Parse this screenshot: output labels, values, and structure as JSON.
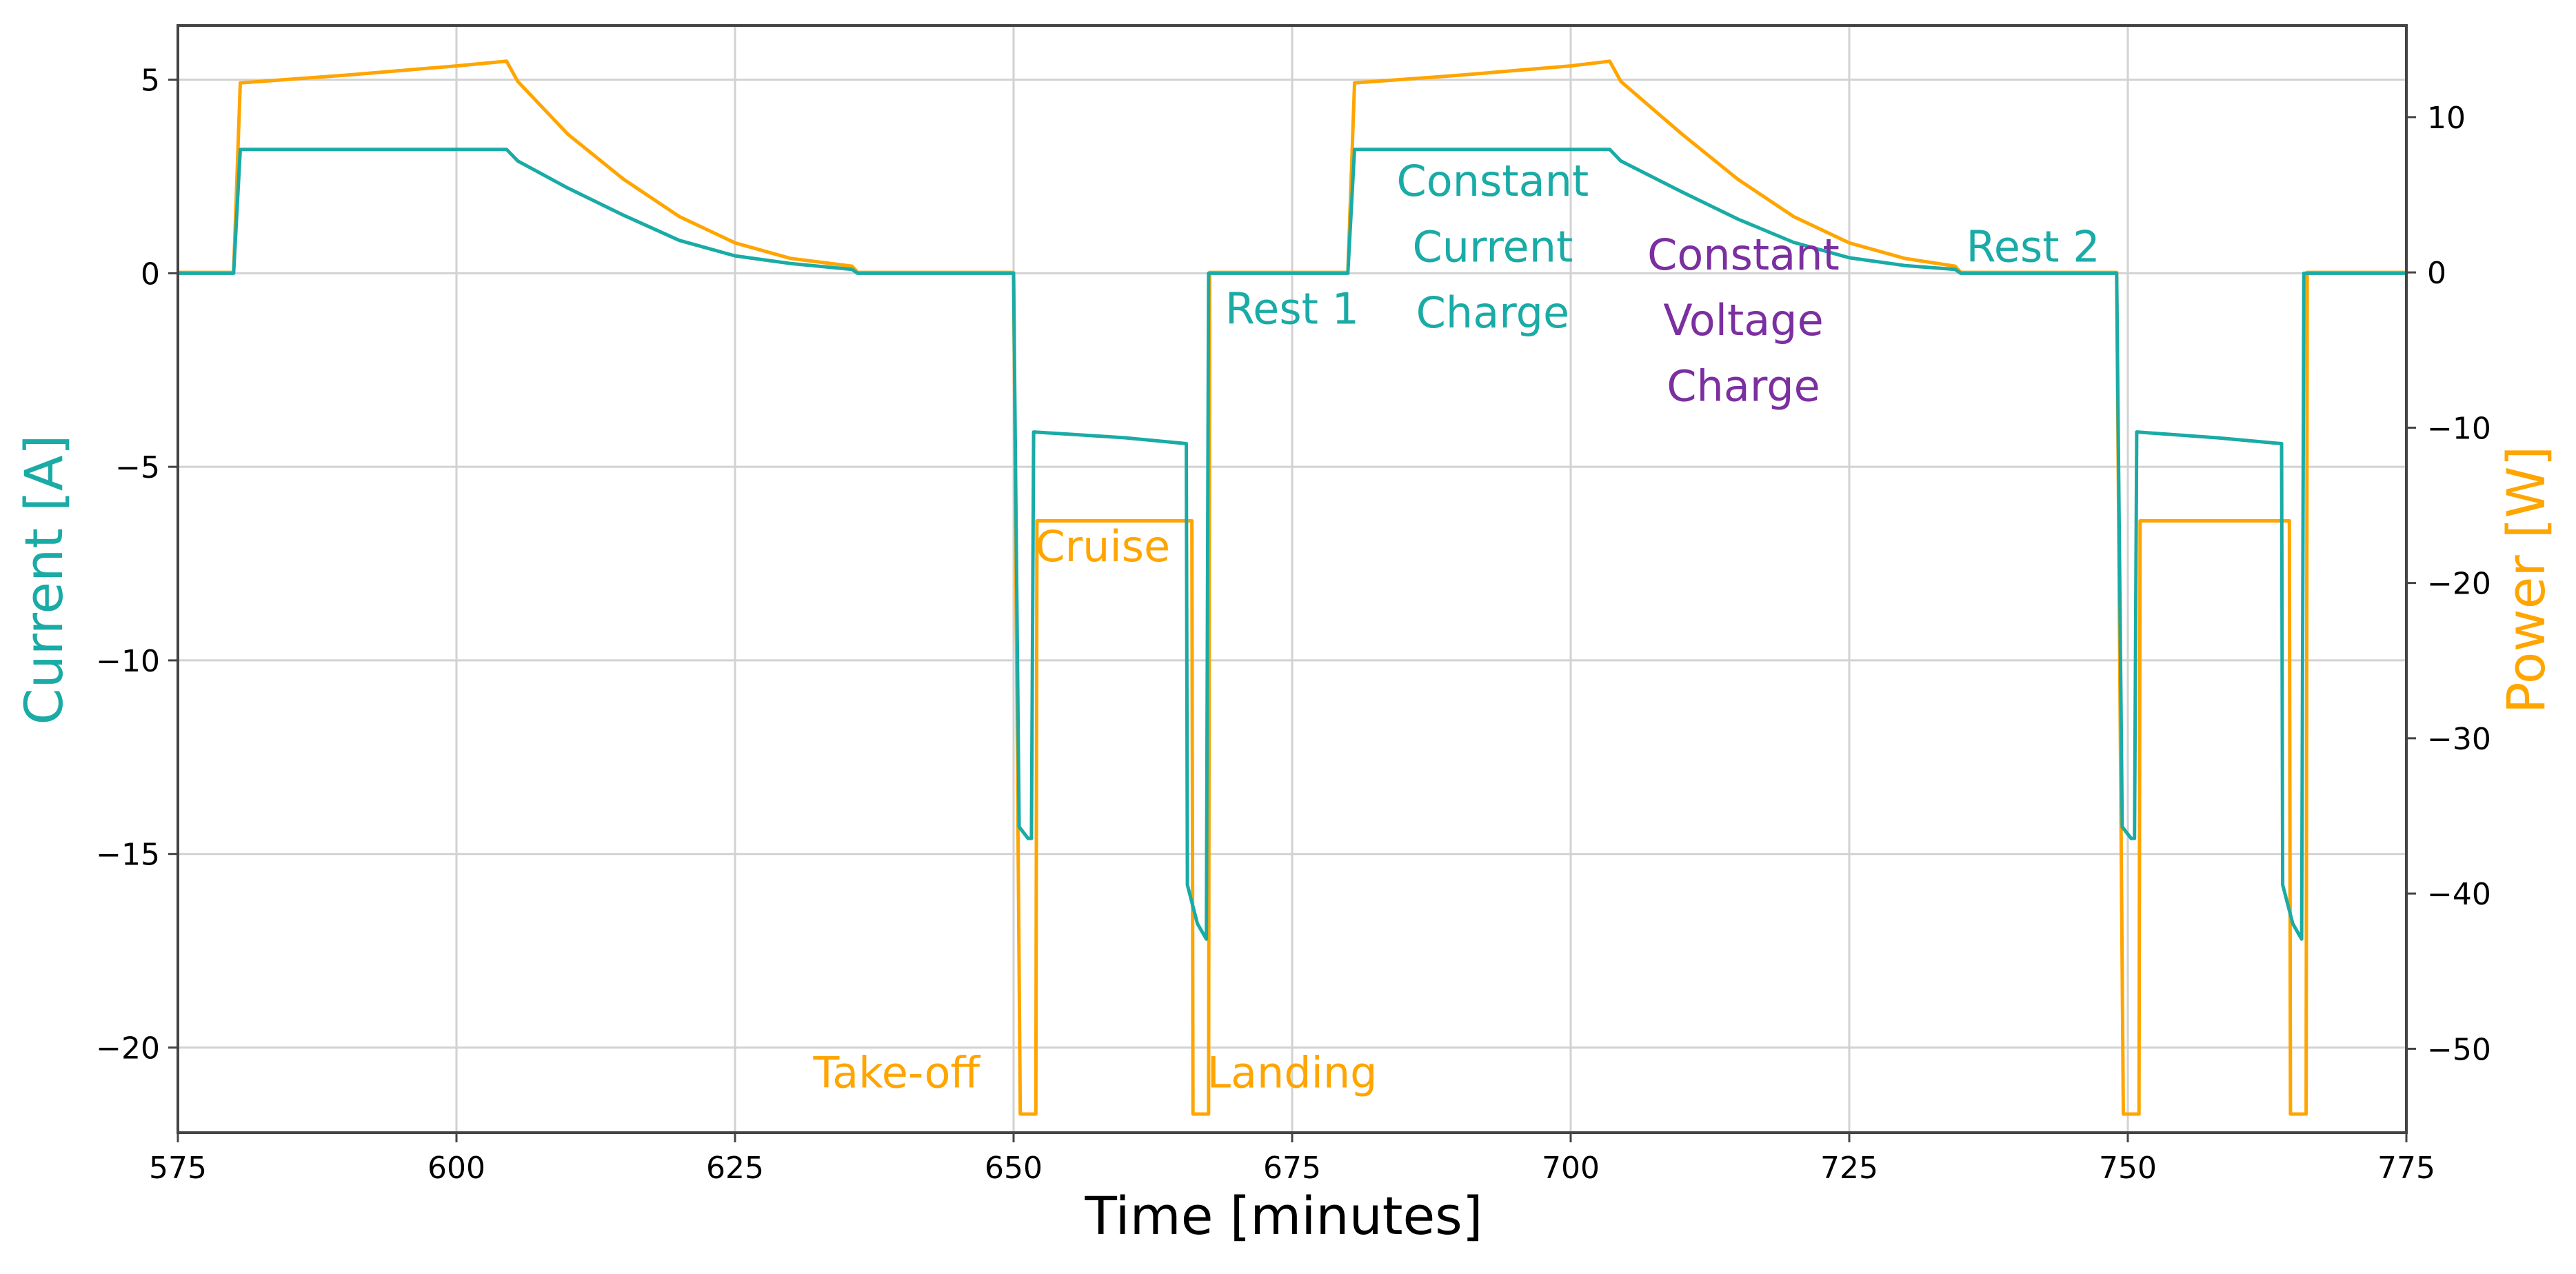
{
  "chart_data": {
    "type": "line",
    "xlabel": "Time [minutes]",
    "ylabel": "Current [A]",
    "y2label": "Power [W]",
    "xlim": [
      575,
      775
    ],
    "ylim": [
      -22.2,
      6.4
    ],
    "y2lim": [
      -55.4,
      15.9
    ],
    "xticks": [
      575,
      600,
      625,
      650,
      675,
      700,
      725,
      750,
      775
    ],
    "yticks": [
      5,
      0,
      -5,
      -10,
      -15,
      -20
    ],
    "y2ticks": [
      10,
      0,
      -10,
      -20,
      -30,
      -40,
      -50
    ],
    "grid": true,
    "colors": {
      "current": "#1aaba6",
      "power": "#ffa500",
      "cv_annotation": "#7b2fa0"
    },
    "series": [
      {
        "name": "Current [A]",
        "axis": "left",
        "color": "#1aaba6",
        "points": [
          [
            575,
            0
          ],
          [
            580,
            0
          ],
          [
            580.6,
            3.2
          ],
          [
            600,
            3.2
          ],
          [
            604.5,
            3.2
          ],
          [
            605.5,
            2.9
          ],
          [
            610,
            2.2
          ],
          [
            615,
            1.5
          ],
          [
            620,
            0.85
          ],
          [
            625,
            0.45
          ],
          [
            630,
            0.25
          ],
          [
            635.5,
            0.1
          ],
          [
            636,
            0
          ],
          [
            650,
            0
          ],
          [
            650.5,
            -14.3
          ],
          [
            651.3,
            -14.6
          ],
          [
            651.6,
            -14.6
          ],
          [
            651.8,
            -4.1
          ],
          [
            660,
            -4.25
          ],
          [
            665.5,
            -4.4
          ],
          [
            665.6,
            -15.8
          ],
          [
            666.5,
            -16.8
          ],
          [
            667.3,
            -17.2
          ],
          [
            667.5,
            0
          ],
          [
            680,
            0
          ],
          [
            680.6,
            3.2
          ],
          [
            700,
            3.2
          ],
          [
            703.5,
            3.2
          ],
          [
            704.5,
            2.9
          ],
          [
            710,
            2.1
          ],
          [
            715,
            1.4
          ],
          [
            720,
            0.8
          ],
          [
            725,
            0.4
          ],
          [
            730,
            0.2
          ],
          [
            734.5,
            0.1
          ],
          [
            735,
            0
          ],
          [
            749,
            0
          ],
          [
            749.5,
            -14.3
          ],
          [
            750.3,
            -14.6
          ],
          [
            750.6,
            -14.6
          ],
          [
            750.8,
            -4.1
          ],
          [
            758,
            -4.25
          ],
          [
            763.8,
            -4.4
          ],
          [
            763.9,
            -15.8
          ],
          [
            764.8,
            -16.8
          ],
          [
            765.6,
            -17.2
          ],
          [
            765.8,
            0
          ],
          [
            775,
            0
          ]
        ]
      },
      {
        "name": "Power [W]",
        "axis": "right",
        "color": "#ffa500",
        "points": [
          [
            575,
            0
          ],
          [
            580,
            0
          ],
          [
            580.6,
            12.2
          ],
          [
            590,
            12.7
          ],
          [
            600,
            13.3
          ],
          [
            604.5,
            13.6
          ],
          [
            605.5,
            12.3
          ],
          [
            610,
            8.9
          ],
          [
            615,
            6.0
          ],
          [
            620,
            3.6
          ],
          [
            625,
            1.9
          ],
          [
            630,
            0.9
          ],
          [
            635.5,
            0.4
          ],
          [
            636,
            0
          ],
          [
            650,
            0
          ],
          [
            650.6,
            -54.2
          ],
          [
            652,
            -54.2
          ],
          [
            652.1,
            -16
          ],
          [
            666,
            -16
          ],
          [
            666.1,
            -54.2
          ],
          [
            667.5,
            -54.2
          ],
          [
            667.6,
            0
          ],
          [
            680,
            0
          ],
          [
            680.6,
            12.2
          ],
          [
            690,
            12.7
          ],
          [
            700,
            13.3
          ],
          [
            703.5,
            13.6
          ],
          [
            704.5,
            12.3
          ],
          [
            710,
            8.9
          ],
          [
            715,
            6.0
          ],
          [
            720,
            3.6
          ],
          [
            725,
            1.9
          ],
          [
            730,
            0.9
          ],
          [
            734.5,
            0.4
          ],
          [
            735,
            0
          ],
          [
            749,
            0
          ],
          [
            749.6,
            -54.2
          ],
          [
            751,
            -54.2
          ],
          [
            751.1,
            -16
          ],
          [
            764.5,
            -16
          ],
          [
            764.6,
            -54.2
          ],
          [
            766,
            -54.2
          ],
          [
            766.1,
            0
          ],
          [
            775,
            0
          ]
        ]
      }
    ],
    "annotations": [
      {
        "text": "Take-off",
        "x": 639.5,
        "y": -52.5,
        "axis": "right",
        "color": "#ffa500",
        "anchor": "middle"
      },
      {
        "text": "Landing",
        "x": 675,
        "y": -52.5,
        "axis": "right",
        "color": "#ffa500",
        "anchor": "middle"
      },
      {
        "text": "Cruise",
        "x": 658,
        "y": -18.6,
        "axis": "right",
        "color": "#ffa500",
        "anchor": "middle"
      },
      {
        "text": "Rest 1",
        "x": 675,
        "y": -1.3,
        "axis": "left",
        "color": "#1aaba6",
        "anchor": "middle"
      },
      {
        "text": "Constant",
        "x": 693,
        "y": 2.0,
        "axis": "left",
        "color": "#1aaba6",
        "anchor": "middle"
      },
      {
        "text": "Current",
        "x": 693,
        "y": 0.3,
        "axis": "left",
        "color": "#1aaba6",
        "anchor": "middle"
      },
      {
        "text": "Charge",
        "x": 693,
        "y": -1.4,
        "axis": "left",
        "color": "#1aaba6",
        "anchor": "middle"
      },
      {
        "text": "Constant",
        "x": 715.5,
        "y": 0.1,
        "axis": "left",
        "color": "#7b2fa0",
        "anchor": "middle"
      },
      {
        "text": "Voltage",
        "x": 715.5,
        "y": -1.6,
        "axis": "left",
        "color": "#7b2fa0",
        "anchor": "middle"
      },
      {
        "text": "Charge",
        "x": 715.5,
        "y": -3.3,
        "axis": "left",
        "color": "#7b2fa0",
        "anchor": "middle"
      },
      {
        "text": "Rest 2",
        "x": 741.5,
        "y": 0.3,
        "axis": "left",
        "color": "#1aaba6",
        "anchor": "middle"
      }
    ]
  }
}
